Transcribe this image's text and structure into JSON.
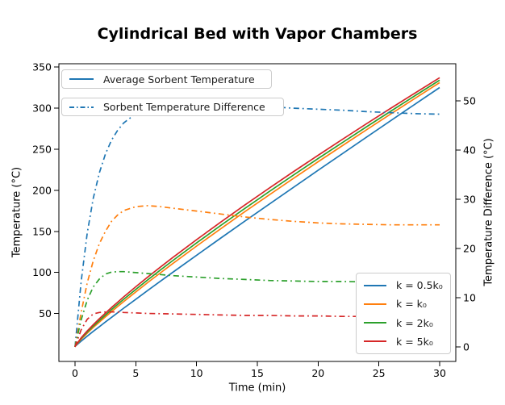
{
  "title": "Cylindrical Bed with Vapor Chambers",
  "axes": {
    "x": {
      "label": "Time (min)",
      "ticks": [
        0,
        5,
        10,
        15,
        20,
        25,
        30
      ],
      "range": [
        -1.33,
        31.33
      ]
    },
    "y_left": {
      "label": "Temperature (°C)",
      "ticks": [
        50,
        100,
        150,
        200,
        250,
        300,
        350
      ],
      "range": [
        -8.3,
        354.0
      ]
    },
    "y_right": {
      "label": "Temperature Difference (°C)",
      "ticks": [
        0,
        10,
        20,
        30,
        40,
        50
      ],
      "range": [
        -2.95,
        57.54
      ]
    }
  },
  "legends": {
    "avg": {
      "label": "Average Sorbent Temperature",
      "color": "#1f77b4",
      "style": "solid"
    },
    "diff": {
      "label": "Sorbent Temperature Difference",
      "color": "#1f77b4",
      "style": "dashdot"
    },
    "series": [
      {
        "label": "k = 0.5k₀",
        "color": "#1f77b4",
        "style": "solid"
      },
      {
        "label": "k = k₀",
        "color": "#ff7f0e",
        "style": "solid"
      },
      {
        "label": "k = 2k₀",
        "color": "#2ca02c",
        "style": "solid"
      },
      {
        "label": "k = 5k₀",
        "color": "#d62728",
        "style": "solid"
      }
    ]
  },
  "chart_data": {
    "type": "line",
    "title": "Cylindrical Bed with Vapor Chambers",
    "xlabel": "Time (min)",
    "ylabel_left": "Temperature (°C)",
    "ylabel_right": "Temperature Difference (°C)",
    "xlim": [
      -1.33,
      31.33
    ],
    "ylim_left": [
      -8.3,
      354.0
    ],
    "ylim_right": [
      -2.95,
      57.54
    ],
    "grid": false,
    "x": [
      0,
      0.5,
      1,
      1.5,
      2,
      2.5,
      3,
      3.5,
      4,
      5,
      6,
      7,
      8,
      10,
      12,
      14,
      16,
      18,
      20,
      22,
      24,
      26,
      28,
      30
    ],
    "series": [
      {
        "name": "k = 0.5k₀ — Average Sorbent Temperature",
        "axis": "left",
        "style": "solid",
        "color": "#1f77b4",
        "values": [
          10,
          16.4,
          22.4,
          28.3,
          34.0,
          39.7,
          45.3,
          50.9,
          56.5,
          67.4,
          78.3,
          89.1,
          99.7,
          120.9,
          141.9,
          162.7,
          183.4,
          203.9,
          224.3,
          244.6,
          264.8,
          285.0,
          305.0,
          325
        ]
      },
      {
        "name": "k = k₀ — Average Sorbent Temperature",
        "axis": "left",
        "style": "solid",
        "color": "#ff7f0e",
        "values": [
          10,
          18.7,
          26.1,
          33.0,
          39.6,
          46.0,
          52.3,
          58.5,
          64.5,
          76.3,
          87.9,
          99.2,
          110.3,
          132.1,
          153.3,
          174.2,
          194.6,
          214.8,
          234.7,
          254.3,
          273.8,
          293.0,
          312.1,
          331
        ]
      },
      {
        "name": "k = 2k₀ — Average Sorbent Temperature",
        "axis": "left",
        "style": "solid",
        "color": "#2ca02c",
        "values": [
          10,
          19.6,
          27.4,
          34.6,
          41.6,
          48.2,
          54.7,
          61.1,
          67.3,
          79.4,
          91.2,
          102.7,
          113.9,
          135.9,
          157.3,
          178.2,
          198.7,
          218.8,
          238.6,
          258.1,
          277.4,
          296.5,
          315.3,
          334
        ]
      },
      {
        "name": "k = 5k₀ — Average Sorbent Temperature",
        "axis": "left",
        "style": "solid",
        "color": "#d62728",
        "values": [
          10,
          20.5,
          28.8,
          36.4,
          43.7,
          50.5,
          57.3,
          63.8,
          70.2,
          82.6,
          94.6,
          106.3,
          117.7,
          139.9,
          161.4,
          182.4,
          202.9,
          222.9,
          242.6,
          262.0,
          281.1,
          300.0,
          318.6,
          337
        ]
      },
      {
        "name": "k = 0.5k₀ — Sorbent Temperature Difference",
        "axis": "right",
        "style": "dashdot",
        "color": "#1f77b4",
        "values": [
          0,
          13.3,
          23.1,
          30.2,
          35.4,
          39.2,
          42.0,
          44.0,
          45.5,
          47.4,
          48.5,
          49.0,
          49.3,
          49.4,
          49.2,
          49.0,
          48.8,
          48.5,
          48.3,
          48.1,
          47.8,
          47.6,
          47.4,
          47.3
        ]
      },
      {
        "name": "k = k₀ — Sorbent Temperature Difference",
        "axis": "right",
        "style": "dashdot",
        "color": "#ff7f0e",
        "values": [
          0,
          7.0,
          13.0,
          17.5,
          21.0,
          23.5,
          25.5,
          26.8,
          27.7,
          28.5,
          28.7,
          28.5,
          28.2,
          27.6,
          27.0,
          26.4,
          25.9,
          25.5,
          25.2,
          25.0,
          24.9,
          24.8,
          24.8,
          24.8
        ]
      },
      {
        "name": "k = 2k₀ — Sorbent Temperature Difference",
        "axis": "right",
        "style": "dashdot",
        "color": "#2ca02c",
        "values": [
          0,
          5.5,
          9.5,
          12.2,
          13.8,
          14.8,
          15.2,
          15.3,
          15.3,
          15.1,
          14.9,
          14.7,
          14.5,
          14.2,
          13.9,
          13.7,
          13.5,
          13.4,
          13.3,
          13.3,
          13.2,
          13.2,
          13.2,
          13.2
        ]
      },
      {
        "name": "k = 5k₀ — Sorbent Temperature Difference",
        "axis": "right",
        "style": "dashdot",
        "color": "#d62728",
        "values": [
          0,
          3.5,
          5.6,
          6.7,
          7.0,
          7.1,
          7.1,
          7.1,
          7.0,
          6.9,
          6.8,
          6.75,
          6.7,
          6.6,
          6.5,
          6.4,
          6.4,
          6.3,
          6.3,
          6.2,
          6.2,
          6.2,
          6.2,
          6.2
        ]
      }
    ]
  }
}
